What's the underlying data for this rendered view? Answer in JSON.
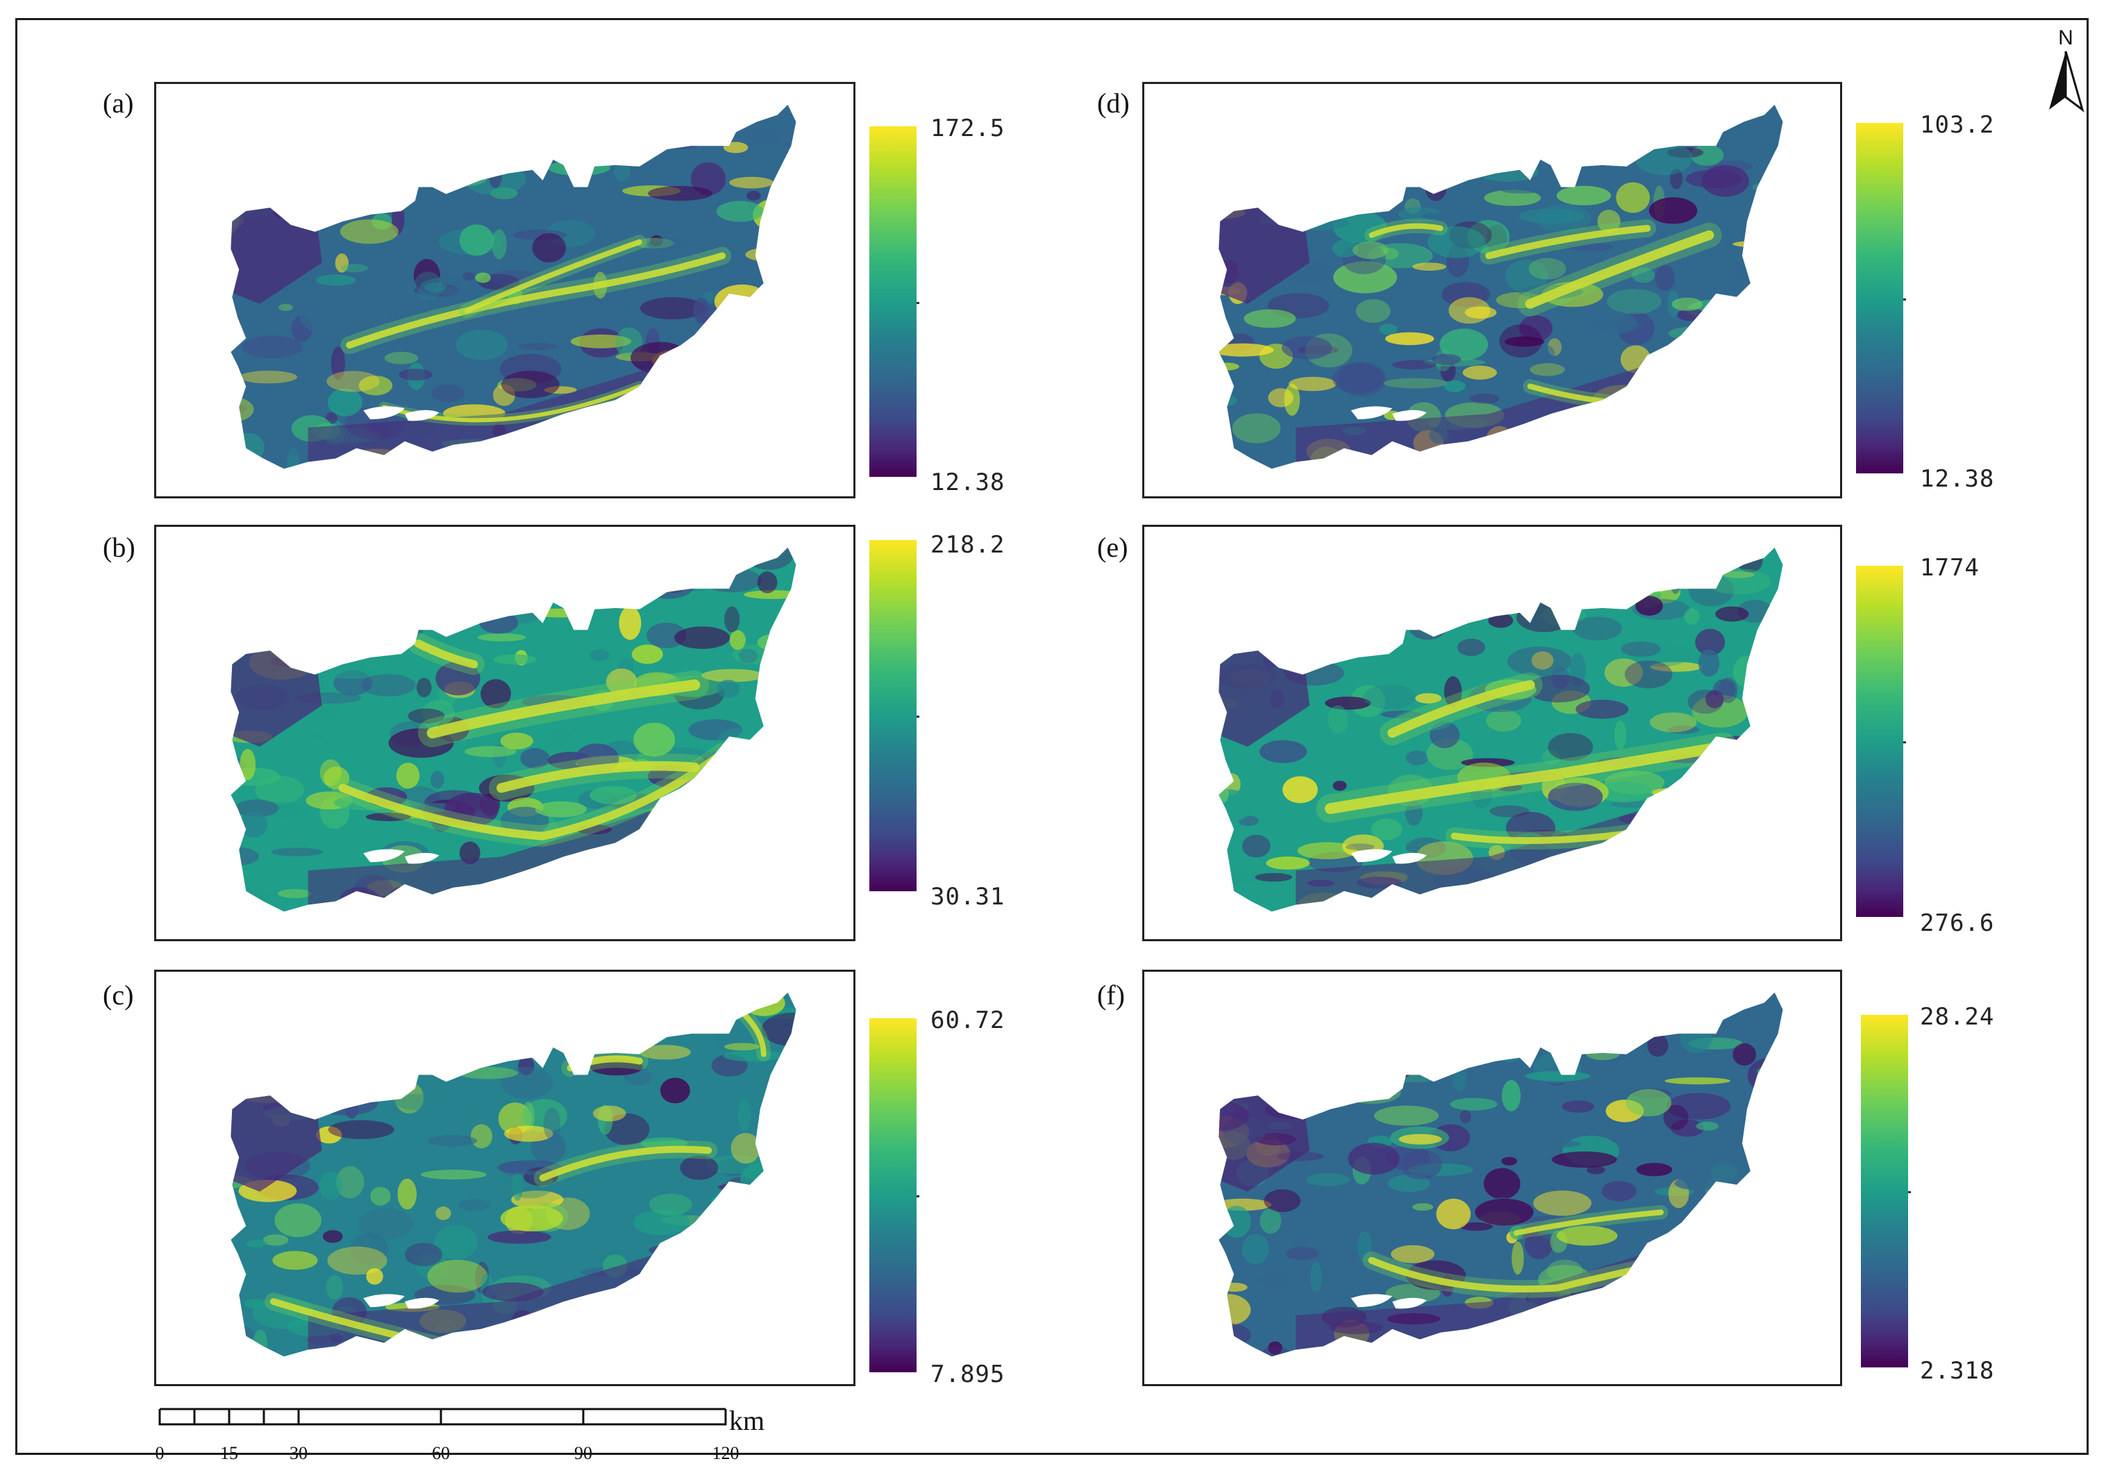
{
  "panels": [
    {
      "id": "a",
      "label": "(a)",
      "legend": {
        "max": "172.5",
        "min": "12.38"
      }
    },
    {
      "id": "b",
      "label": "(b)",
      "legend": {
        "max": "218.2",
        "min": "30.31"
      }
    },
    {
      "id": "c",
      "label": "(c)",
      "legend": {
        "max": "60.72",
        "min": "7.895"
      }
    },
    {
      "id": "d",
      "label": "(d)",
      "legend": {
        "max": "103.2",
        "min": "12.38"
      }
    },
    {
      "id": "e",
      "label": "(e)",
      "legend": {
        "max": "1774",
        "min": "276.6"
      }
    },
    {
      "id": "f",
      "label": "(f)",
      "legend": {
        "max": "28.24",
        "min": "2.318"
      }
    }
  ],
  "north_arrow": {
    "label": "N"
  },
  "scale_bar": {
    "unit": "km",
    "ticks": [
      "0",
      "15",
      "30",
      "60",
      "90",
      "120"
    ]
  },
  "colormap": {
    "name": "viridis",
    "colors": [
      "#440154",
      "#482878",
      "#3e4989",
      "#31688e",
      "#26828e",
      "#1f9e89",
      "#35b779",
      "#6ece58",
      "#b5de2b",
      "#fde725"
    ]
  }
}
